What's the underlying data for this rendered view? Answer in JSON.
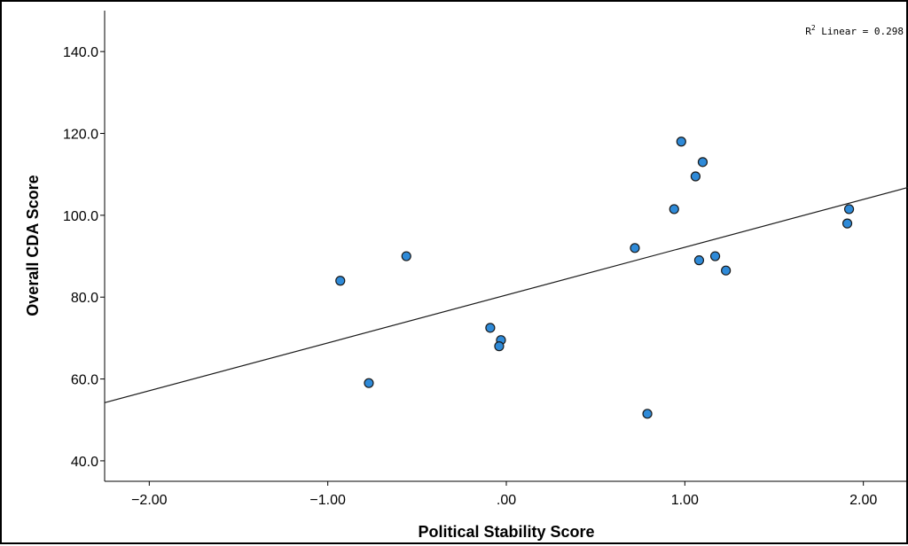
{
  "chart_data": {
    "type": "scatter",
    "xlabel": "Political Stability Score",
    "ylabel": "Overall CDA Score",
    "xlim": [
      -2.25,
      2.25
    ],
    "ylim": [
      35.0,
      150.0
    ],
    "x_ticks": [
      {
        "value": -2.0,
        "label": "−2.00"
      },
      {
        "value": -1.0,
        "label": "−1.00"
      },
      {
        "value": 0.0,
        "label": ".00"
      },
      {
        "value": 1.0,
        "label": "1.00"
      },
      {
        "value": 2.0,
        "label": "2.00"
      }
    ],
    "y_ticks": [
      {
        "value": 40.0,
        "label": "40.0"
      },
      {
        "value": 60.0,
        "label": "60.0"
      },
      {
        "value": 80.0,
        "label": "80.0"
      },
      {
        "value": 100.0,
        "label": "100.0"
      },
      {
        "value": 120.0,
        "label": "120.0"
      },
      {
        "value": 140.0,
        "label": "140.0"
      }
    ],
    "grid": false,
    "point_color": "#2e8ad8",
    "point_edge_color": "#1a1a1a",
    "points": [
      {
        "x": -0.93,
        "y": 84.0
      },
      {
        "x": -0.77,
        "y": 59.0
      },
      {
        "x": -0.56,
        "y": 90.0
      },
      {
        "x": -0.09,
        "y": 72.5
      },
      {
        "x": -0.03,
        "y": 69.5
      },
      {
        "x": -0.04,
        "y": 68.0
      },
      {
        "x": 0.72,
        "y": 92.0
      },
      {
        "x": 0.79,
        "y": 51.5
      },
      {
        "x": 0.94,
        "y": 101.5
      },
      {
        "x": 0.98,
        "y": 118.0
      },
      {
        "x": 1.06,
        "y": 109.5
      },
      {
        "x": 1.1,
        "y": 113.0
      },
      {
        "x": 1.08,
        "y": 89.0
      },
      {
        "x": 1.17,
        "y": 90.0
      },
      {
        "x": 1.23,
        "y": 86.5
      },
      {
        "x": 1.91,
        "y": 98.0
      },
      {
        "x": 1.92,
        "y": 101.5
      }
    ],
    "fit_line": {
      "type": "linear",
      "x": [
        -2.25,
        2.25
      ],
      "y": [
        54.2,
        106.8
      ],
      "annotation_prefix": "R",
      "annotation_sup": "2",
      "annotation_suffix": " Linear = 0.298"
    }
  }
}
